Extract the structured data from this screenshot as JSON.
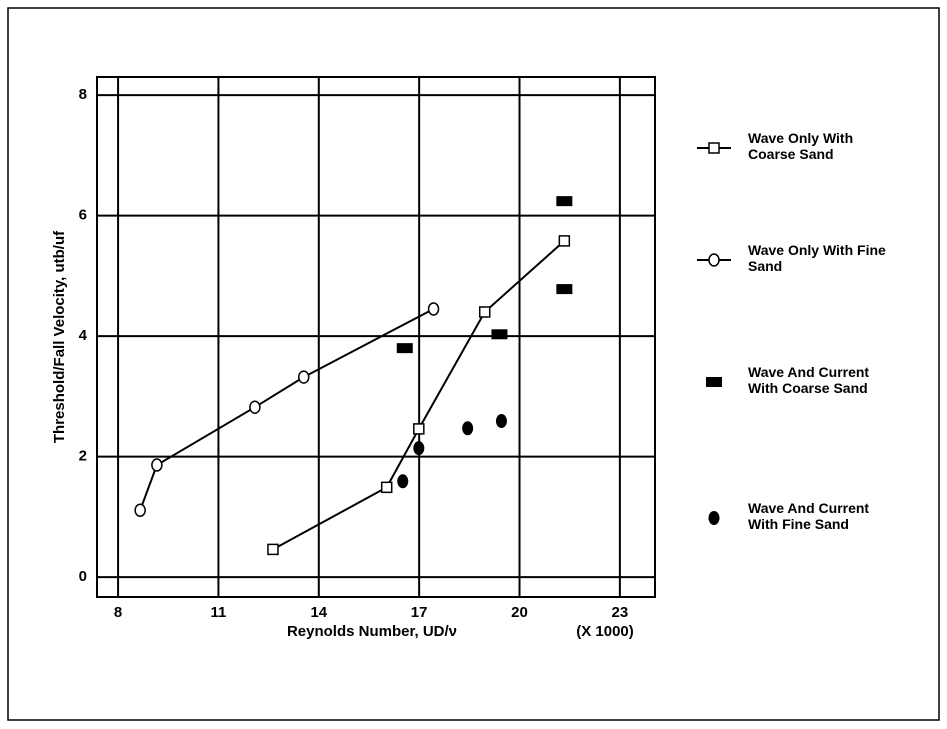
{
  "chart_data": {
    "type": "line",
    "xlabel": "Reynolds Number, UD/ν",
    "ylabel": "Threshold/Fall Velocity, utb/uf",
    "annotation": "(X 1000)",
    "xlim": [
      7.37,
      24.05
    ],
    "ylim": [
      -0.33,
      8.3
    ],
    "xticks": [
      8,
      11,
      14,
      17,
      20,
      23
    ],
    "yticks": [
      0,
      2,
      4,
      6,
      8
    ],
    "grid": true,
    "legend": "right",
    "series": [
      {
        "name": "Wave Only With Coarse Sand",
        "color": "#000000",
        "marker": "open-square",
        "connected": true,
        "x": [
          12.63,
          16.03,
          16.99,
          18.96,
          21.34
        ],
        "values": [
          0.46,
          1.49,
          2.46,
          4.4,
          5.58
        ]
      },
      {
        "name": "Wave Only With Fine Sand",
        "color": "#000000",
        "marker": "open-circle",
        "connected": true,
        "x": [
          8.66,
          9.16,
          12.09,
          13.55,
          17.43
        ],
        "values": [
          1.11,
          1.86,
          2.82,
          3.32,
          4.45
        ]
      },
      {
        "name": "Wave And Current With Coarse Sand",
        "color": "#000000",
        "marker": "filled-rect",
        "connected": false,
        "x": [
          16.57,
          19.4,
          21.34,
          21.34
        ],
        "values": [
          3.8,
          4.03,
          6.24,
          4.78
        ]
      },
      {
        "name": "Wave And Current With Fine Sand",
        "color": "#000000",
        "marker": "filled-circle",
        "connected": false,
        "x": [
          16.51,
          16.99,
          18.45,
          19.46
        ],
        "values": [
          1.59,
          2.14,
          2.47,
          2.59
        ]
      }
    ]
  }
}
